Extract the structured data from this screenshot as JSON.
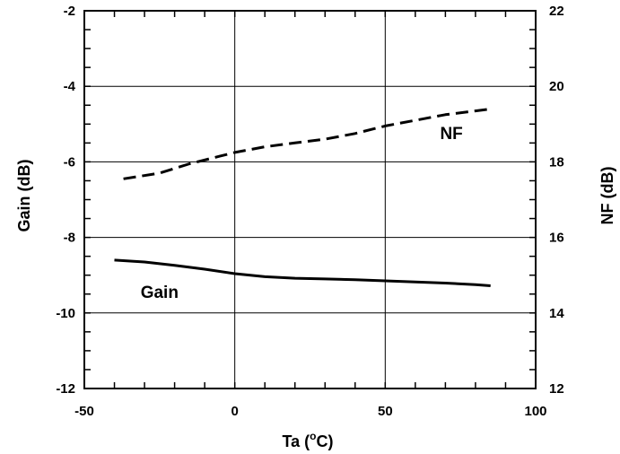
{
  "chart_data": {
    "type": "line",
    "x_axis": {
      "label_main": "Ta (",
      "label_sup": "o",
      "label_end": "C)",
      "range": [
        -50,
        100
      ],
      "ticks": [
        "-50",
        "0",
        "50",
        "100"
      ]
    },
    "y_left": {
      "label": "Gain (dB)",
      "range": [
        -12,
        -2
      ],
      "ticks": [
        "-12",
        "-10",
        "-8",
        "-6",
        "-4",
        "-2"
      ]
    },
    "y_right": {
      "label": "NF (dB)",
      "range": [
        12,
        22
      ],
      "ticks": [
        "12",
        "14",
        "16",
        "18",
        "20",
        "22"
      ]
    },
    "grid": true,
    "series": [
      {
        "name": "Gain",
        "axis": "left",
        "style": "solid",
        "color": "#000000",
        "points": [
          [
            -40,
            -8.6
          ],
          [
            -30,
            -8.65
          ],
          [
            -20,
            -8.74
          ],
          [
            -10,
            -8.84
          ],
          [
            0,
            -8.96
          ],
          [
            10,
            -9.04
          ],
          [
            20,
            -9.08
          ],
          [
            30,
            -9.1
          ],
          [
            40,
            -9.12
          ],
          [
            50,
            -9.15
          ],
          [
            60,
            -9.18
          ],
          [
            70,
            -9.21
          ],
          [
            80,
            -9.25
          ],
          [
            85,
            -9.28
          ]
        ]
      },
      {
        "name": "NF",
        "axis": "right",
        "style": "dashed",
        "color": "#000000",
        "points": [
          [
            -37,
            17.55
          ],
          [
            -25,
            17.7
          ],
          [
            -15,
            17.95
          ],
          [
            -5,
            18.15
          ],
          [
            0,
            18.25
          ],
          [
            10,
            18.4
          ],
          [
            20,
            18.5
          ],
          [
            30,
            18.6
          ],
          [
            40,
            18.75
          ],
          [
            50,
            18.95
          ],
          [
            60,
            19.1
          ],
          [
            70,
            19.25
          ],
          [
            80,
            19.35
          ],
          [
            85,
            19.4
          ]
        ]
      }
    ],
    "annotations": [
      {
        "text": "NF",
        "x": 72,
        "y": 18.6,
        "axis": "right"
      },
      {
        "text": "Gain",
        "x": -25,
        "y": -9.6,
        "axis": "left"
      }
    ]
  }
}
